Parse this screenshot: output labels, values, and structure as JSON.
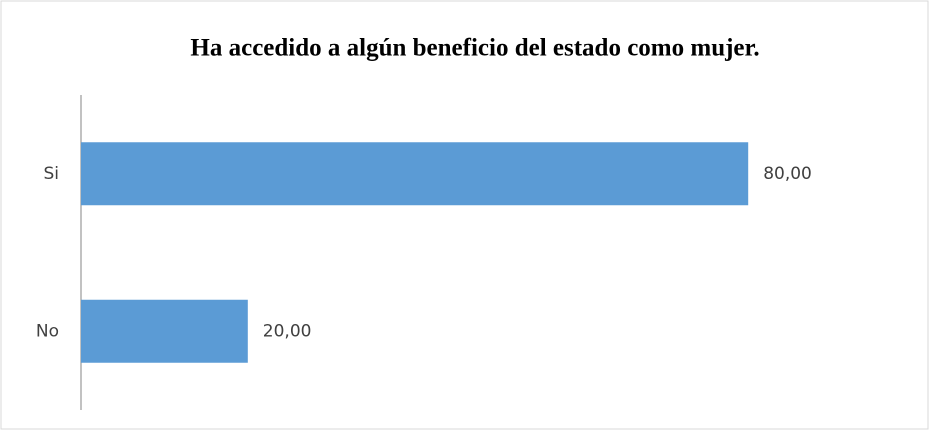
{
  "chart_data": {
    "type": "hbar",
    "title": "Ha accedido a algún beneficio del estado como mujer.",
    "categories": [
      "Si",
      "No"
    ],
    "values": [
      80,
      20
    ],
    "value_labels": [
      "80,00",
      "20,00"
    ],
    "color": "#5b9bd5"
  }
}
